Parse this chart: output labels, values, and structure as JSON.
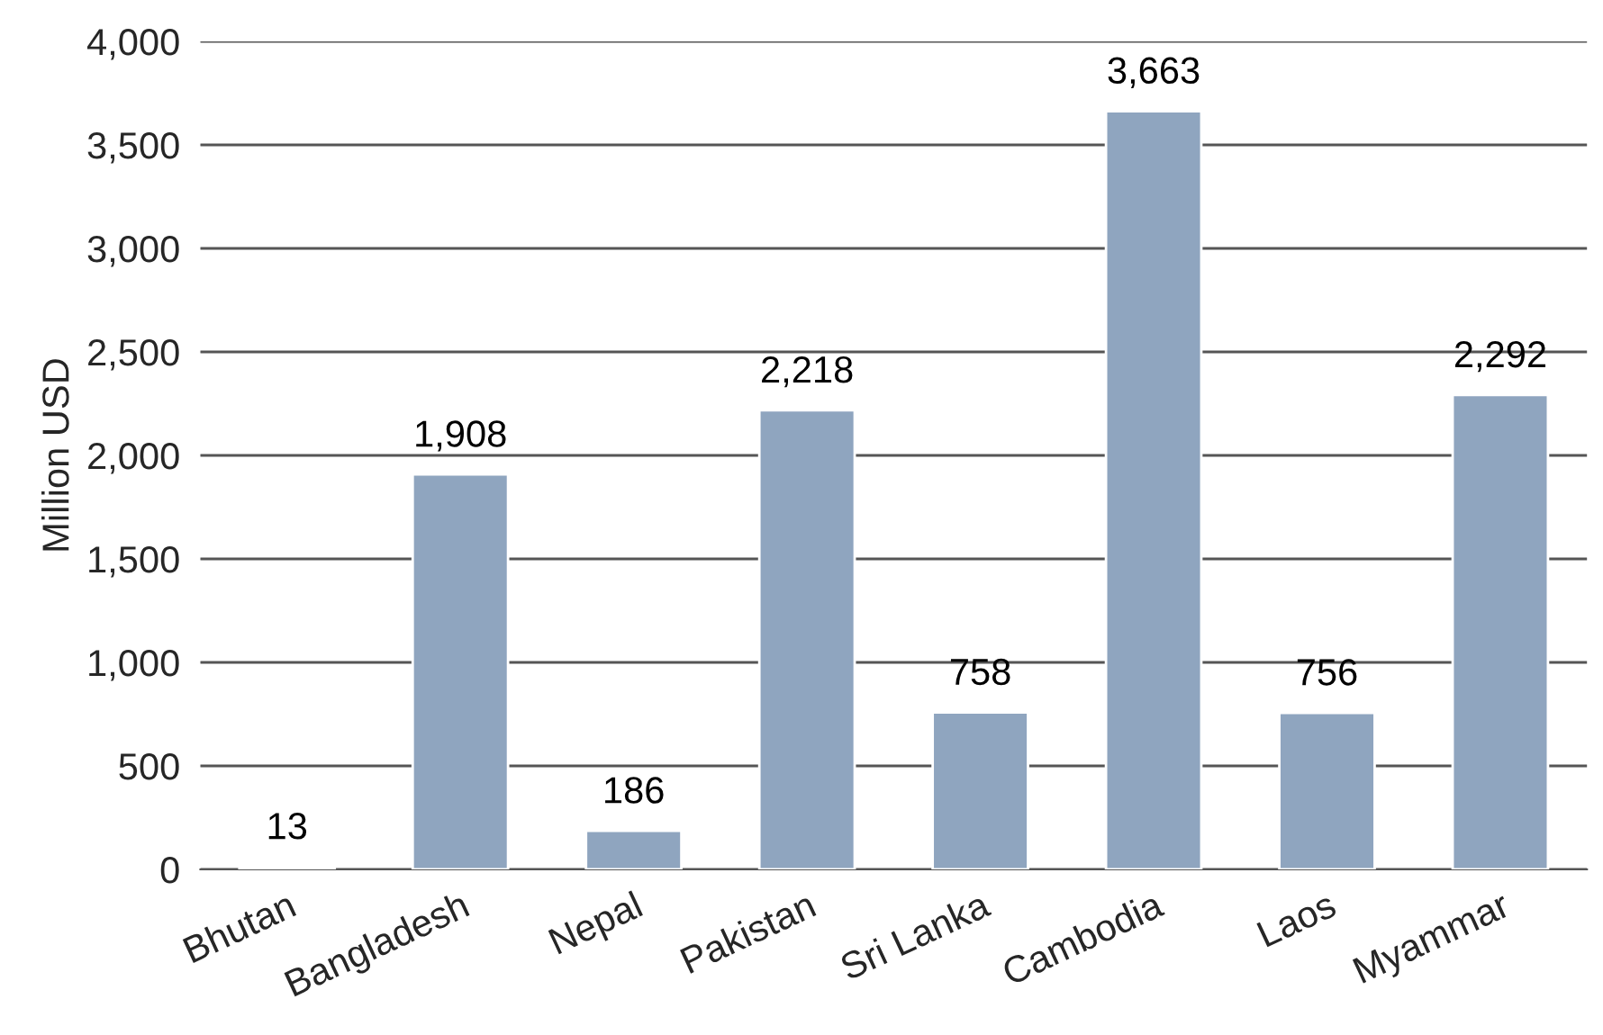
{
  "chart_data": {
    "type": "bar",
    "ylabel": "Million USD",
    "categories": [
      "Bhutan",
      "Bangladesh",
      "Nepal",
      "Pakistan",
      "Sri Lanka",
      "Cambodia",
      "Laos",
      "Myammar"
    ],
    "values": [
      13,
      1908,
      186,
      2218,
      758,
      3663,
      756,
      2292
    ],
    "color": "#8fa5bf",
    "ylim": [
      0,
      4000
    ],
    "yticks": [
      {
        "value": 0,
        "label": "0"
      },
      {
        "value": 500,
        "label": "500"
      },
      {
        "value": 1000,
        "label": "1,000"
      },
      {
        "value": 1500,
        "label": "1,500"
      },
      {
        "value": 2000,
        "label": "2,000"
      },
      {
        "value": 2500,
        "label": "2,500"
      },
      {
        "value": 3000,
        "label": "3,000"
      },
      {
        "value": 3500,
        "label": "3,500"
      },
      {
        "value": 4000,
        "label": "4,000"
      }
    ],
    "value_labels": [
      "13",
      "1,908",
      "186",
      "2,218",
      "758",
      "3,663",
      "756",
      "2,292"
    ],
    "grid": "y",
    "legend": false
  }
}
